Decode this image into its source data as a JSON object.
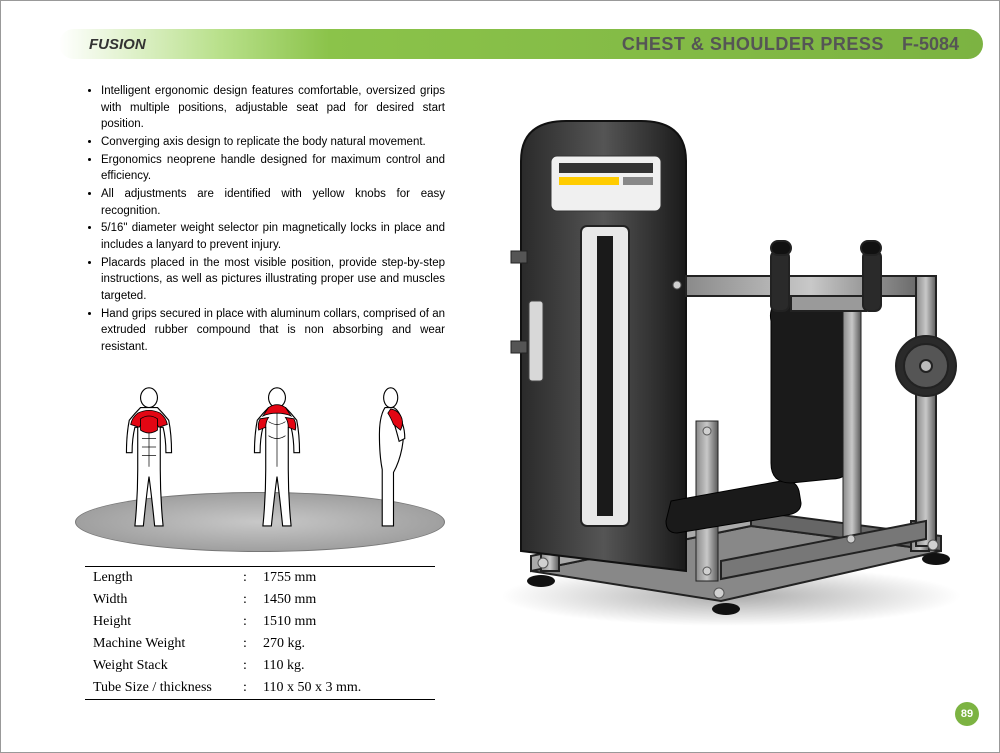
{
  "header": {
    "brand": "FUSION",
    "title": "CHEST & SHOULDER PRESS",
    "code": "F-5084",
    "brand_fontsize": 15,
    "title_fontsize": 18,
    "bar_gradient_from": "#ffffff",
    "bar_gradient_mid": "#b8e08a",
    "bar_gradient_to": "#7cb342"
  },
  "features": [
    "Intelligent ergonomic design features comfortable, oversized grips with multiple positions, adjustable seat pad for desired start position.",
    "Converging axis design to replicate the body natural movement.",
    "Ergonomics neoprene handle designed for maximum control and efficiency.",
    "All adjustments are identified with yellow knobs for easy recognition.",
    "5/16\" diameter weight selector pin magnetically locks in place and includes a lanyard to prevent injury.",
    "Placards placed in the most visible position, provide step-by-step instructions, as well as pictures illustrating proper use and muscles targeted.",
    "Hand grips secured in place with aluminum collars, comprised of an extruded rubber compound that is non absorbing and wear resistant."
  ],
  "muscle_diagram": {
    "highlight_color": "#e30613",
    "outline_color": "#000000",
    "platform_color_inner": "#c8c8c8",
    "platform_color_outer": "#888888",
    "views": [
      "front",
      "back",
      "side"
    ]
  },
  "specs": {
    "rows": [
      {
        "label": "Length",
        "value": "1755 mm"
      },
      {
        "label": "Width",
        "value": "1450 mm"
      },
      {
        "label": "Height",
        "value": "1510  mm"
      },
      {
        "label": "Machine Weight",
        "value": "270 kg."
      },
      {
        "label": "Weight Stack",
        "value": "110 kg."
      },
      {
        "label": "Tube Size / thickness",
        "value": "110 x 50 x 3 mm."
      }
    ],
    "font_family": "Times New Roman",
    "fontsize": 14,
    "border_color": "#000000"
  },
  "machine_image": {
    "frame_color_dark": "#3a3a3a",
    "frame_color_light": "#9a9a9a",
    "pad_color": "#1a1a1a",
    "panel_color": "#f0f0f0",
    "accent_color": "#ffcc00"
  },
  "page": {
    "number": "89",
    "badge_color": "#7cb342",
    "text_color": "#ffffff"
  }
}
